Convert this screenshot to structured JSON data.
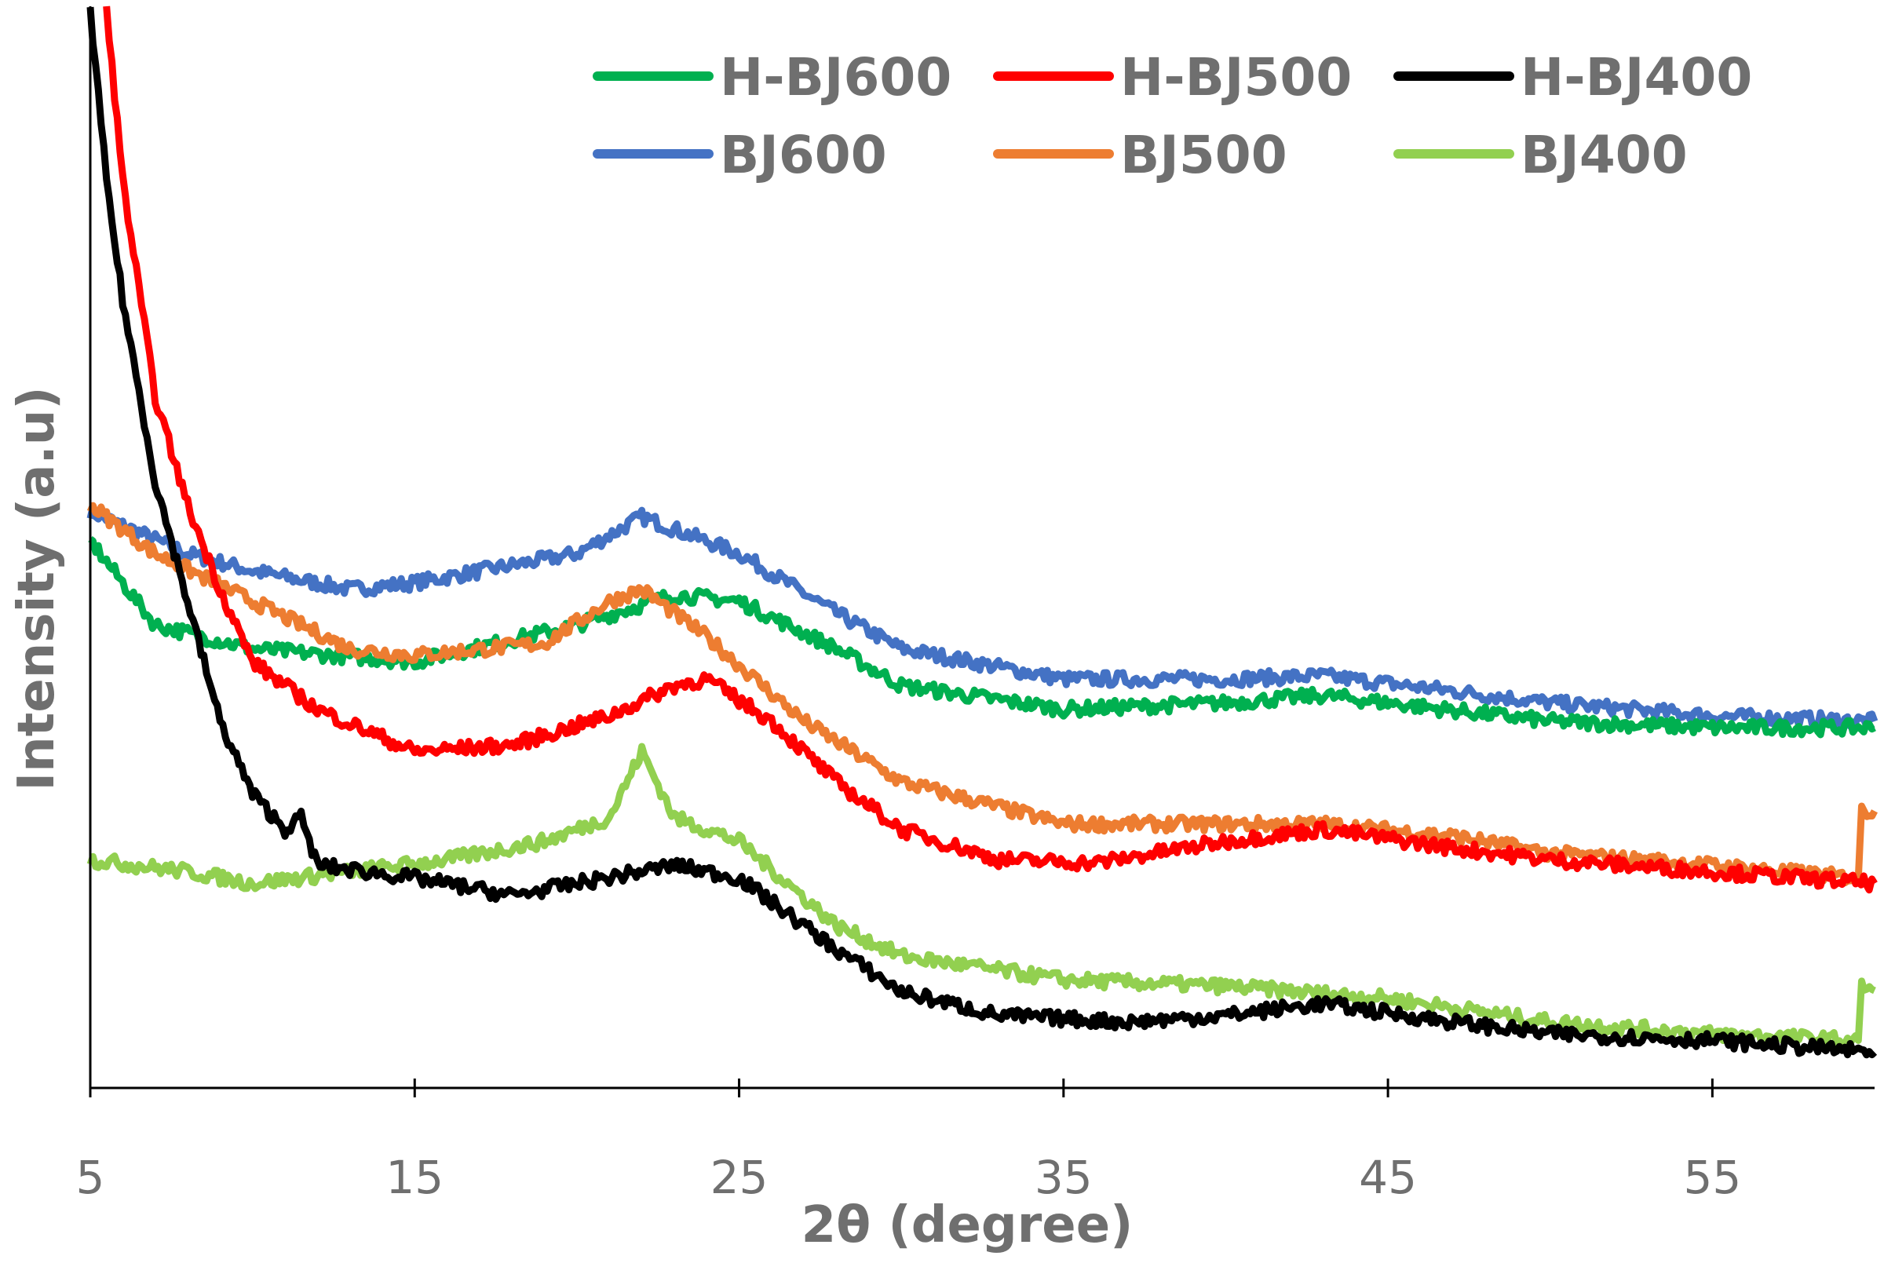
{
  "chart_data": {
    "type": "line",
    "title": "",
    "xlabel": "2θ (degree)",
    "ylabel": "Intensity (a.u)",
    "xlim": [
      5,
      60
    ],
    "ylim": [
      0,
      100
    ],
    "xticks": [
      "5",
      "15",
      "25",
      "35",
      "45",
      "55"
    ],
    "xtick_values": [
      5,
      15,
      25,
      35,
      45,
      55
    ],
    "grid": false,
    "legend_placement": "top-right",
    "series": [
      {
        "name": "H-BJ600",
        "color": "#00b050",
        "x": [
          5,
          7,
          10,
          15,
          20,
          23,
          25,
          28,
          30,
          35,
          40,
          43,
          45,
          50,
          55,
          60
        ],
        "y": [
          50.6,
          42.8,
          40.6,
          39.4,
          42.8,
          45.6,
          45,
          40.6,
          37.2,
          35,
          35.6,
          36.3,
          35.6,
          33.9,
          33.3,
          33.3
        ]
      },
      {
        "name": "H-BJ500",
        "color": "#ff0000",
        "x": [
          5.5,
          6,
          7,
          8,
          9,
          10,
          12,
          15,
          18,
          21,
          23,
          24,
          26,
          28,
          30,
          33,
          36,
          40,
          43,
          47,
          50,
          55,
          60
        ],
        "y": [
          100,
          83.9,
          63.9,
          53.9,
          46.1,
          39.4,
          35,
          31.1,
          31.7,
          34.4,
          37.2,
          37.8,
          33.9,
          28.3,
          23.9,
          21.1,
          20.8,
          22.8,
          23.9,
          22.2,
          21.1,
          20,
          18.9
        ]
      },
      {
        "name": "H-BJ400",
        "color": "#000000",
        "x": [
          5,
          5.5,
          6,
          7,
          8,
          9,
          10,
          11,
          11.5,
          12,
          15,
          18,
          20,
          23,
          25,
          28,
          30,
          33,
          37,
          40,
          43,
          47,
          50,
          55,
          60
        ],
        "y": [
          99.4,
          83.9,
          72.8,
          56.1,
          45,
          33.9,
          27.2,
          23.9,
          25,
          20.6,
          19.4,
          17.8,
          18.9,
          20.6,
          19.4,
          12.8,
          8.9,
          6.7,
          6.1,
          6.7,
          7.8,
          6.1,
          5,
          4.4,
          3.3
        ]
      },
      {
        "name": "BJ600",
        "color": "#4472c4",
        "x": [
          5,
          8,
          10,
          13,
          15,
          20,
          22,
          25,
          28,
          30,
          35,
          40,
          43,
          47,
          50,
          55,
          60
        ],
        "y": [
          53.3,
          49.4,
          47.8,
          46.1,
          46.7,
          49.4,
          52.8,
          49.4,
          43.9,
          40.6,
          37.8,
          37.8,
          38.1,
          36.7,
          35.6,
          34.4,
          33.9
        ]
      },
      {
        "name": "BJ500",
        "color": "#ed7d31",
        "x": [
          5,
          7,
          10,
          13,
          15,
          19,
          21,
          22,
          24,
          27,
          30,
          35,
          40,
          43,
          47,
          50,
          55,
          59.5,
          59.6,
          60
        ],
        "y": [
          53.9,
          49.4,
          45,
          40.6,
          40,
          41.1,
          45,
          46.1,
          41.7,
          33.9,
          28.3,
          24.4,
          24.4,
          24.4,
          23.3,
          21.7,
          20.6,
          19.4,
          25.6,
          25.6
        ]
      },
      {
        "name": "BJ400",
        "color": "#92d050",
        "x": [
          5,
          8,
          10,
          13,
          16,
          19,
          21,
          22,
          23,
          25,
          28,
          30,
          35,
          40,
          45,
          50,
          55,
          59.5,
          59.6,
          60
        ],
        "y": [
          21.1,
          20,
          18.9,
          20,
          21.1,
          22.8,
          25,
          31.1,
          25,
          22.8,
          15,
          12.2,
          10,
          9.4,
          8.3,
          6.1,
          5,
          4.4,
          9.4,
          9
        ]
      }
    ]
  }
}
